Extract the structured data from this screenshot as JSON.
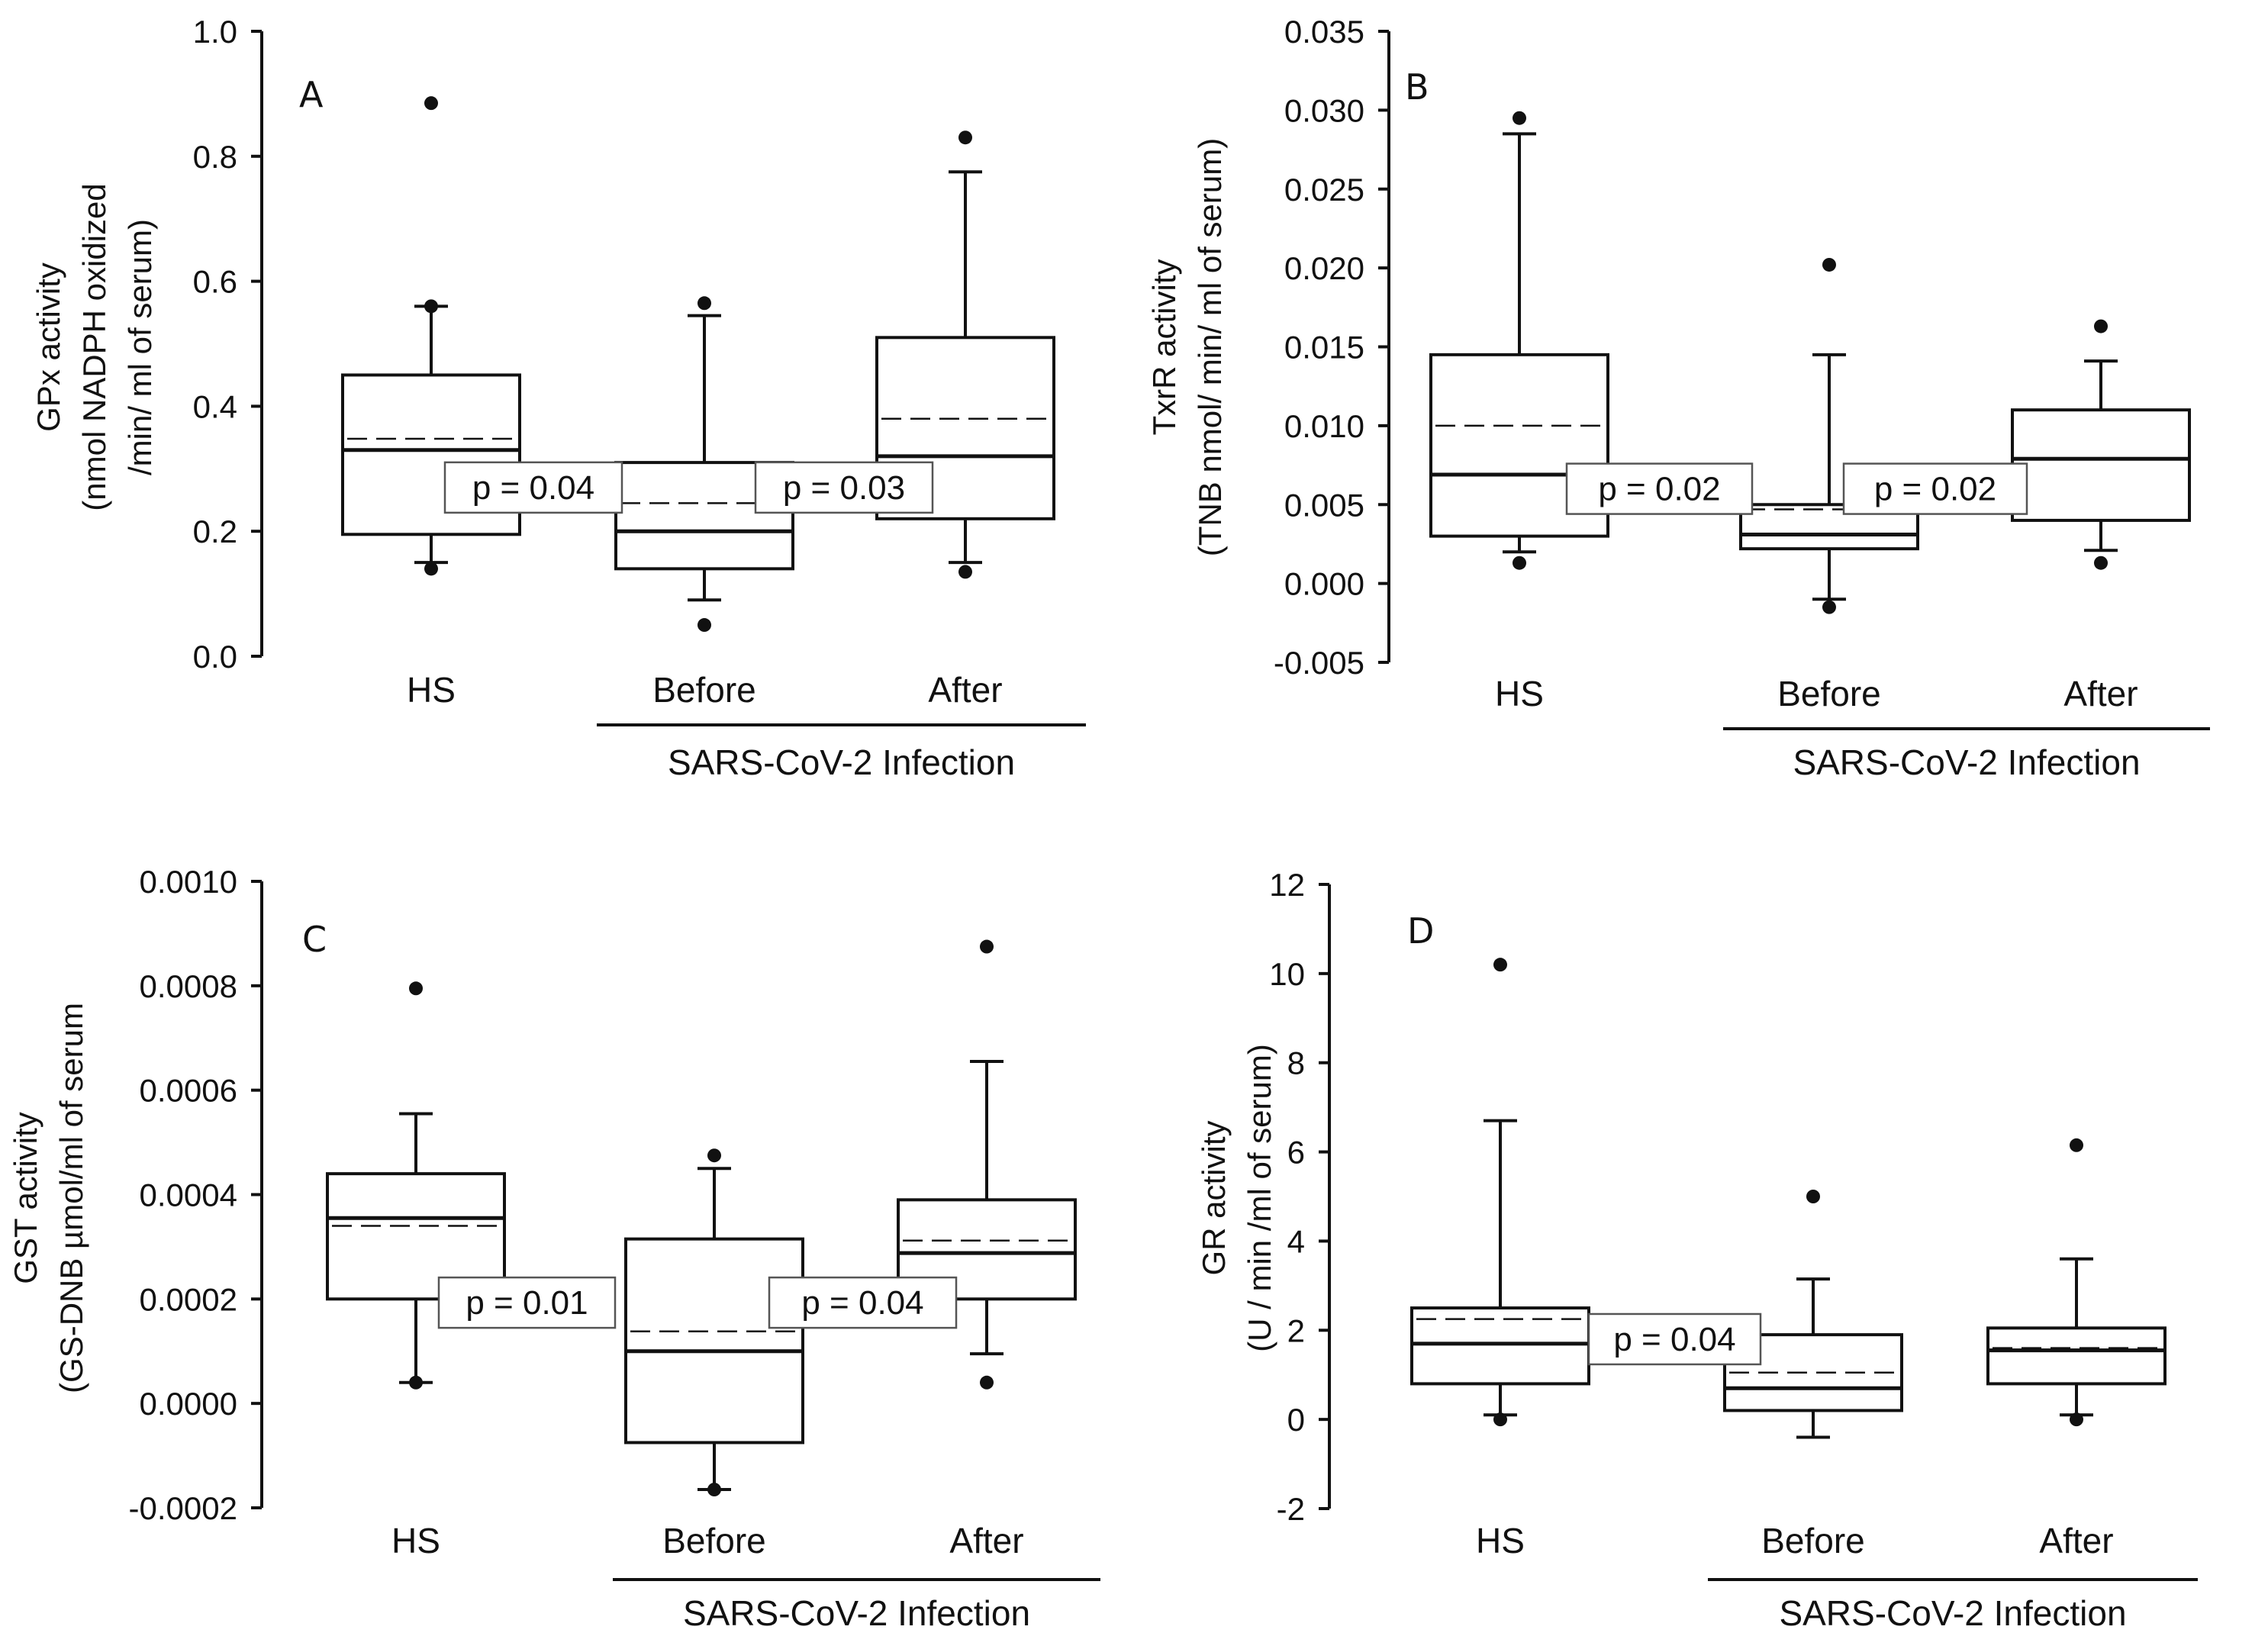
{
  "chart_data": [
    {
      "type": "box",
      "panel_label": "A",
      "ylabel_lines": [
        "GPx activity",
        "(nmol NADPH oxidized",
        "/min/ ml of serum)"
      ],
      "ylim": [
        0.0,
        1.0
      ],
      "yticks": [
        "0.0",
        "0.2",
        "0.4",
        "0.6",
        "0.8",
        "1.0"
      ],
      "ytick_values": [
        0.0,
        0.2,
        0.4,
        0.6,
        0.8,
        1.0
      ],
      "categories": [
        "HS",
        "Before",
        "After"
      ],
      "group_label": "SARS-CoV-2 Infection",
      "boxes": [
        {
          "q1": 0.195,
          "median": 0.33,
          "mean": 0.348,
          "q3": 0.45,
          "whisker_low": 0.15,
          "whisker_high": 0.56,
          "outliers": [
            0.14,
            0.56,
            0.885
          ]
        },
        {
          "q1": 0.14,
          "median": 0.2,
          "mean": 0.245,
          "q3": 0.31,
          "whisker_low": 0.09,
          "whisker_high": 0.545,
          "outliers": [
            0.05,
            0.565
          ]
        },
        {
          "q1": 0.22,
          "median": 0.32,
          "mean": 0.38,
          "q3": 0.51,
          "whisker_low": 0.15,
          "whisker_high": 0.775,
          "outliers": [
            0.135,
            0.83
          ]
        }
      ],
      "pvalues": [
        {
          "text": "p = 0.04",
          "y": 0.27
        },
        {
          "text": "p = 0.03",
          "y": 0.27
        }
      ]
    },
    {
      "type": "box",
      "panel_label": "B",
      "ylabel_lines": [
        "TxrR activity",
        "(TNB nmol/ min/ ml of serum)"
      ],
      "ylim": [
        -0.005,
        0.035
      ],
      "yticks": [
        "-0.005",
        "0.000",
        "0.005",
        "0.010",
        "0.015",
        "0.020",
        "0.025",
        "0.030",
        "0.035"
      ],
      "ytick_values": [
        -0.005,
        0.0,
        0.005,
        0.01,
        0.015,
        0.02,
        0.025,
        0.03,
        0.035
      ],
      "categories": [
        "HS",
        "Before",
        "After"
      ],
      "group_label": "SARS-CoV-2 Infection",
      "boxes": [
        {
          "q1": 0.003,
          "median": 0.0069,
          "mean": 0.01,
          "q3": 0.0145,
          "whisker_low": 0.002,
          "whisker_high": 0.0285,
          "outliers": [
            0.0013,
            0.0295
          ]
        },
        {
          "q1": 0.0022,
          "median": 0.0031,
          "mean": 0.0047,
          "q3": 0.005,
          "whisker_low": -0.001,
          "whisker_high": 0.0145,
          "outliers": [
            -0.0015,
            0.0202
          ]
        },
        {
          "q1": 0.004,
          "median": 0.0079,
          "mean": 0.0079,
          "q3": 0.011,
          "whisker_low": 0.0021,
          "whisker_high": 0.0141,
          "outliers": [
            0.0013,
            0.0163
          ]
        }
      ],
      "pvalues": [
        {
          "text": "p = 0.02",
          "y": 0.006
        },
        {
          "text": "p = 0.02",
          "y": 0.006
        }
      ]
    },
    {
      "type": "box",
      "panel_label": "C",
      "ylabel_lines": [
        "GST activity",
        "(GS-DNB µmol/ml of serum"
      ],
      "ylim": [
        -0.0002,
        0.001
      ],
      "yticks": [
        "-0.0002",
        "0.0000",
        "0.0002",
        "0.0004",
        "0.0006",
        "0.0008",
        "0.0010"
      ],
      "ytick_values": [
        -0.0002,
        0.0,
        0.0002,
        0.0004,
        0.0006,
        0.0008,
        0.001
      ],
      "categories": [
        "HS",
        "Before",
        "After"
      ],
      "group_label": "SARS-CoV-2 Infection",
      "boxes": [
        {
          "q1": 0.0002,
          "median": 0.000355,
          "mean": 0.00034,
          "q3": 0.00044,
          "whisker_low": 4e-05,
          "whisker_high": 0.000555,
          "outliers": [
            4e-05,
            0.000795
          ]
        },
        {
          "q1": -7.5e-05,
          "median": 0.0001,
          "mean": 0.000138,
          "q3": 0.000315,
          "whisker_low": -0.000165,
          "whisker_high": 0.00045,
          "outliers": [
            -0.000165,
            0.000475
          ]
        },
        {
          "q1": 0.0002,
          "median": 0.000288,
          "mean": 0.000312,
          "q3": 0.00039,
          "whisker_low": 9.5e-05,
          "whisker_high": 0.000655,
          "outliers": [
            4e-05,
            0.000875
          ]
        }
      ],
      "pvalues": [
        {
          "text": "p = 0.01",
          "y": 0.000193
        },
        {
          "text": "p = 0.04",
          "y": 0.000193
        }
      ]
    },
    {
      "type": "box",
      "panel_label": "D",
      "ylabel_lines": [
        "GR activity",
        "(U / min /ml of serum)"
      ],
      "ylim": [
        -2,
        12
      ],
      "yticks": [
        "-2",
        "0",
        "2",
        "4",
        "6",
        "8",
        "10",
        "12"
      ],
      "ytick_values": [
        -2,
        0,
        2,
        4,
        6,
        8,
        10,
        12
      ],
      "categories": [
        "HS",
        "Before",
        "After"
      ],
      "group_label": "SARS-CoV-2 Infection",
      "boxes": [
        {
          "q1": 0.8,
          "median": 1.7,
          "mean": 2.25,
          "q3": 2.5,
          "whisker_low": 0.1,
          "whisker_high": 6.7,
          "outliers": [
            0.0,
            10.2
          ]
        },
        {
          "q1": 0.2,
          "median": 0.7,
          "mean": 1.05,
          "q3": 1.9,
          "whisker_low": -0.4,
          "whisker_high": 3.15,
          "outliers": [
            5.0
          ]
        },
        {
          "q1": 0.8,
          "median": 1.55,
          "mean": 1.6,
          "q3": 2.05,
          "whisker_low": 0.1,
          "whisker_high": 3.6,
          "outliers": [
            0.0,
            6.15
          ]
        }
      ],
      "pvalues": [
        {
          "text": "p = 0.04",
          "y": 1.8
        }
      ]
    }
  ]
}
